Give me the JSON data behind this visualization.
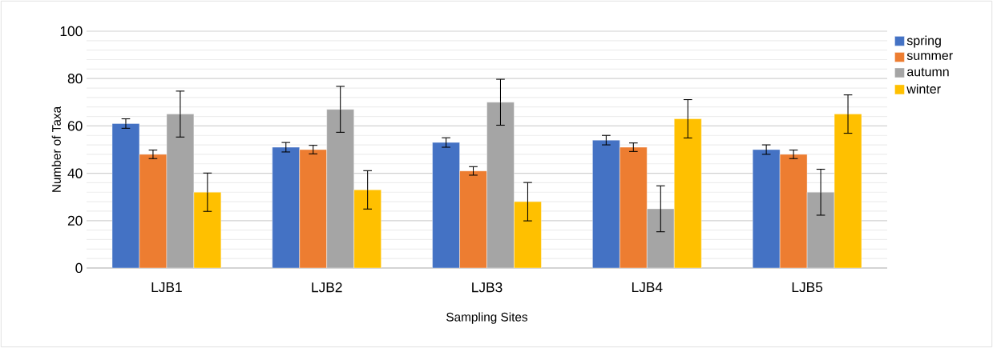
{
  "chart_data": {
    "type": "bar",
    "xlabel": "Sampling Sites",
    "ylabel": "Number of Taxa",
    "categories": [
      "LJB1",
      "LJB2",
      "LJB3",
      "LJB4",
      "LJB5"
    ],
    "series": [
      {
        "name": "spring",
        "color": "#4472c4",
        "values": [
          61,
          51,
          53,
          54,
          50
        ],
        "errors": [
          2,
          2,
          2,
          2,
          2
        ]
      },
      {
        "name": "summer",
        "color": "#ed7d31",
        "values": [
          48,
          50,
          41,
          51,
          48
        ],
        "errors": [
          1.8,
          1.8,
          1.8,
          1.8,
          1.8
        ]
      },
      {
        "name": "autumn",
        "color": "#a5a5a5",
        "values": [
          65,
          67,
          70,
          25,
          32
        ],
        "errors": [
          9.7,
          9.7,
          9.7,
          9.7,
          9.7
        ]
      },
      {
        "name": "winter",
        "color": "#ffc000",
        "values": [
          32,
          33,
          28,
          63,
          65
        ],
        "errors": [
          8.1,
          8.1,
          8.1,
          8.1,
          8.1
        ]
      }
    ],
    "ylim": [
      0,
      100
    ],
    "yticks": [
      0,
      20,
      40,
      60,
      80,
      100
    ],
    "grid": "y",
    "legend": "top right"
  }
}
